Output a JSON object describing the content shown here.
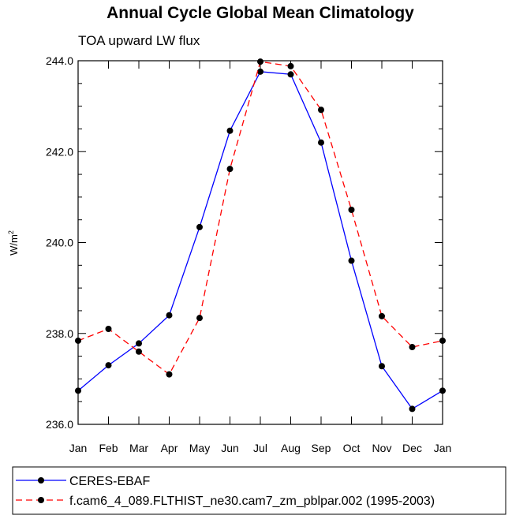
{
  "chart_data": {
    "type": "line",
    "title": "Annual Cycle Global Mean Climatology",
    "subtitle": "TOA upward LW flux",
    "ylabel": "W/m",
    "ylabel_sup": "2",
    "xlabel": "",
    "categories": [
      "Jan",
      "Feb",
      "Mar",
      "Apr",
      "May",
      "Jun",
      "Jul",
      "Aug",
      "Sep",
      "Oct",
      "Nov",
      "Dec",
      "Jan"
    ],
    "ylim": [
      236.0,
      244.0
    ],
    "yticks": [
      236.0,
      238.0,
      240.0,
      242.0,
      244.0
    ],
    "ytick_labels": [
      "236.0",
      "238.0",
      "240.0",
      "242.0",
      "244.0"
    ],
    "series": [
      {
        "name": "CERES-EBAF",
        "color": "#0000ff",
        "dash": "solid",
        "values": [
          236.74,
          237.3,
          237.78,
          238.4,
          240.34,
          242.46,
          243.76,
          243.7,
          242.2,
          239.6,
          237.28,
          236.34,
          236.74
        ]
      },
      {
        "name": "f.cam6_4_089.FLTHIST_ne30.cam7_zm_pblpar.002 (1995-2003)",
        "color": "#ff0000",
        "dash": "dashed",
        "values": [
          237.84,
          238.1,
          237.6,
          237.1,
          238.34,
          241.62,
          243.98,
          243.88,
          242.92,
          240.72,
          238.38,
          237.7,
          237.84
        ]
      }
    ]
  }
}
